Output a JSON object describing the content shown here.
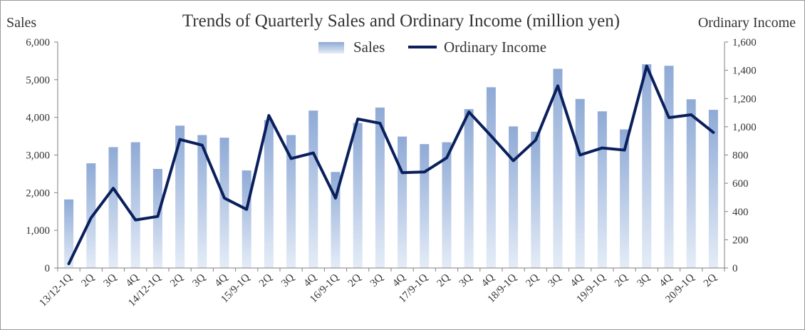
{
  "chart_data": {
    "type": "bar+line",
    "title": "Trends of Quarterly Sales and Ordinary Income (million yen)",
    "y_left_label": "Sales",
    "y_right_label": "Ordinary Income",
    "y_left_ticks": [
      "0",
      "1,000",
      "2,000",
      "3,000",
      "4,000",
      "5,000",
      "6,000"
    ],
    "y_right_ticks": [
      "0",
      "200",
      "400",
      "600",
      "800",
      "1,000",
      "1,200",
      "1,400",
      "1,600"
    ],
    "ylim_left": [
      0,
      6000
    ],
    "ylim_right": [
      0,
      1600
    ],
    "legend_placement": "top-center",
    "grid": false,
    "categories": [
      "13/12-1Q",
      "2Q",
      "3Q",
      "4Q",
      "14/12-1Q",
      "2Q",
      "3Q",
      "4Q",
      "15/9-1Q",
      "2Q",
      "3Q",
      "4Q",
      "16/9-1Q",
      "2Q",
      "3Q",
      "4Q",
      "17/9-1Q",
      "2Q",
      "3Q",
      "4Q",
      "18/9-1Q",
      "2Q",
      "3Q",
      "4Q",
      "19/9-1Q",
      "2Q",
      "3Q",
      "4Q",
      "20/9-1Q",
      "2Q"
    ],
    "series": [
      {
        "name": "Sales",
        "kind": "bar",
        "axis": "left",
        "color_top": "#8faad6",
        "color_bottom": "#e4ecf7",
        "values": [
          1820,
          2780,
          3210,
          3340,
          2630,
          3780,
          3530,
          3460,
          2590,
          3930,
          3530,
          4180,
          2550,
          3850,
          4260,
          3490,
          3290,
          3340,
          4220,
          4800,
          3760,
          3620,
          5290,
          4490,
          4160,
          3680,
          5410,
          5370,
          4480,
          4200
        ]
      },
      {
        "name": "Ordinary Income",
        "kind": "line",
        "axis": "right",
        "color": "#0a1f5c",
        "values": [
          30,
          355,
          565,
          340,
          365,
          910,
          870,
          495,
          415,
          1080,
          775,
          815,
          495,
          1055,
          1025,
          675,
          680,
          780,
          1105,
          935,
          760,
          905,
          1290,
          800,
          850,
          835,
          1430,
          1065,
          1085,
          960
        ]
      }
    ]
  }
}
